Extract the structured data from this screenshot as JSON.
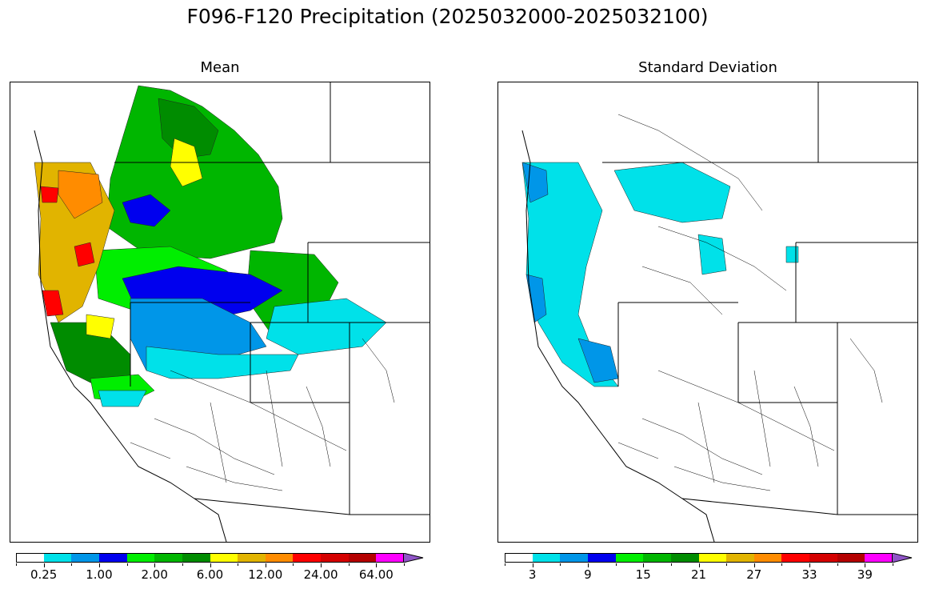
{
  "title": "F096-F120 Precipitation (2025032000-2025032100)",
  "panels": {
    "mean": {
      "title": "Mean",
      "colorbar": {
        "colors": [
          "#ffffff",
          "#00e1e9",
          "#0096e8",
          "#0000ee",
          "#00ee00",
          "#00b600",
          "#008c00",
          "#ffff00",
          "#e1b400",
          "#ff8c00",
          "#ff0000",
          "#d40000",
          "#b40000",
          "#ff00ff",
          "#9055c8"
        ],
        "labels": [
          "0.25",
          "1.00",
          "2.00",
          "6.00",
          "12.00",
          "24.00",
          "64.00"
        ],
        "extend": "max"
      }
    },
    "std": {
      "title": "Standard Deviation",
      "colorbar": {
        "colors": [
          "#ffffff",
          "#00e1e9",
          "#0096e8",
          "#0000ee",
          "#00ee00",
          "#00b600",
          "#008c00",
          "#ffff00",
          "#e1b400",
          "#ff8c00",
          "#ff0000",
          "#d40000",
          "#b40000",
          "#ff00ff",
          "#9055c8"
        ],
        "labels": [
          "3",
          "9",
          "15",
          "21",
          "27",
          "33",
          "39"
        ],
        "extend": "max"
      }
    }
  }
}
